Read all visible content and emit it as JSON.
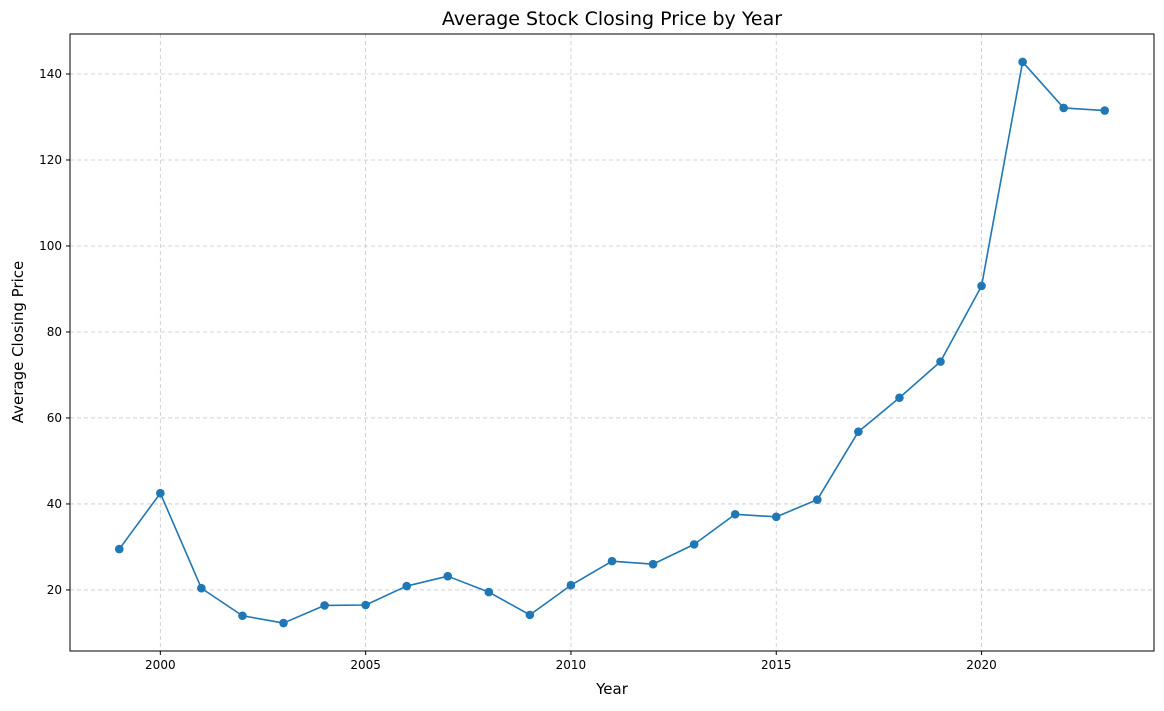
{
  "chart_data": {
    "type": "line",
    "title": "Average Stock Closing Price by Year",
    "xlabel": "Year",
    "ylabel": "Average Closing Price",
    "x": [
      1999,
      2000,
      2001,
      2002,
      2003,
      2004,
      2005,
      2006,
      2007,
      2008,
      2009,
      2010,
      2011,
      2012,
      2013,
      2014,
      2015,
      2016,
      2017,
      2018,
      2019,
      2020,
      2021,
      2022,
      2023
    ],
    "series": [
      {
        "name": "",
        "values": [
          29.5,
          42.5,
          20.4,
          14.0,
          12.3,
          16.4,
          16.5,
          20.9,
          23.2,
          19.5,
          14.2,
          21.1,
          26.7,
          26.0,
          30.6,
          37.6,
          37.0,
          41.0,
          56.8,
          64.7,
          73.1,
          90.7,
          142.8,
          132.1,
          131.5
        ],
        "color": "#1f77b4"
      }
    ],
    "xlim": [
      1997.8,
      2024.2
    ],
    "ylim": [
      5.8,
      149.3
    ],
    "xticks": [
      2000,
      2005,
      2010,
      2015,
      2020
    ],
    "yticks": [
      20,
      40,
      60,
      80,
      100,
      120,
      140
    ],
    "grid": true,
    "grid_style": "dashed",
    "legend": "none",
    "marker": "circle"
  }
}
